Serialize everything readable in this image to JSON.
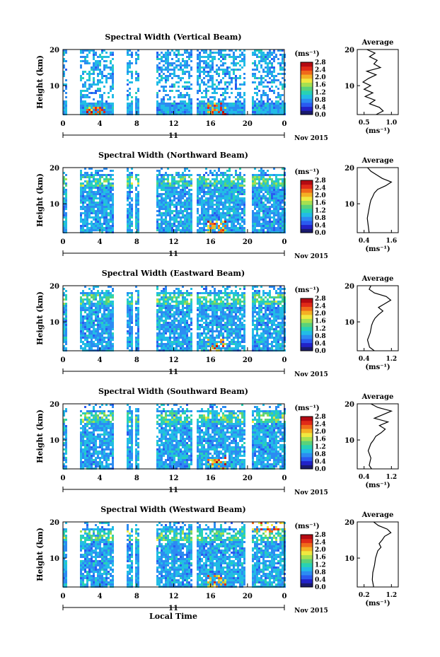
{
  "chart_data": [
    {
      "type": "heatmap",
      "title": "Spectral Width (Vertical Beam)",
      "ylabel": "Height (km)",
      "yticks": [
        "20",
        "10"
      ],
      "xticks": [
        "0",
        "4",
        "8",
        "12",
        "16",
        "20",
        "0"
      ],
      "date_labels": [
        "11",
        "Nov 2015"
      ],
      "colorbar": {
        "unit": "(ms⁻¹)",
        "ticks": [
          "0.0",
          "0.4",
          "0.8",
          "1.2",
          "1.6",
          "2.0",
          "2.4",
          "2.8"
        ]
      },
      "average_profile": {
        "title": "Average",
        "xlabel": "(ms⁻¹)",
        "xticks": [
          "0.5",
          "1.0"
        ],
        "yticks": [
          "20",
          "10"
        ],
        "points": [
          [
            0.72,
            2
          ],
          [
            0.85,
            3
          ],
          [
            0.78,
            4
          ],
          [
            0.6,
            5
          ],
          [
            0.7,
            6
          ],
          [
            0.52,
            7
          ],
          [
            0.66,
            8
          ],
          [
            0.5,
            9
          ],
          [
            0.62,
            10
          ],
          [
            0.48,
            11
          ],
          [
            0.58,
            12
          ],
          [
            0.72,
            13
          ],
          [
            0.55,
            14
          ],
          [
            0.8,
            15
          ],
          [
            0.68,
            16
          ],
          [
            0.74,
            17
          ],
          [
            0.6,
            18
          ],
          [
            0.7,
            19
          ],
          [
            0.55,
            20
          ]
        ]
      }
    },
    {
      "type": "heatmap",
      "title": "Spectral Width (Northward Beam)",
      "ylabel": "Height (km)",
      "yticks": [
        "20",
        "10"
      ],
      "xticks": [
        "0",
        "4",
        "8",
        "12",
        "16",
        "20",
        "0"
      ],
      "date_labels": [
        "11",
        "Nov 2015"
      ],
      "colorbar": {
        "unit": "(ms⁻¹)",
        "ticks": [
          "0.0",
          "0.4",
          "0.8",
          "1.2",
          "1.6",
          "2.0",
          "2.4",
          "2.8"
        ]
      },
      "average_profile": {
        "title": "Average",
        "xlabel": "(ms⁻¹)",
        "xticks": [
          "0.4",
          "1.6"
        ],
        "yticks": [
          "20",
          "10"
        ],
        "points": [
          [
            0.62,
            2
          ],
          [
            0.58,
            4
          ],
          [
            0.54,
            6
          ],
          [
            0.6,
            8
          ],
          [
            0.66,
            10
          ],
          [
            0.7,
            11
          ],
          [
            0.78,
            12
          ],
          [
            0.85,
            13
          ],
          [
            1.0,
            14
          ],
          [
            1.35,
            15
          ],
          [
            1.6,
            16
          ],
          [
            1.2,
            17
          ],
          [
            0.95,
            18
          ],
          [
            0.7,
            19
          ],
          [
            0.55,
            20
          ]
        ]
      }
    },
    {
      "type": "heatmap",
      "title": "Spectral Width (Eastward Beam)",
      "ylabel": "Height (km)",
      "yticks": [
        "20",
        "10"
      ],
      "xticks": [
        "0",
        "4",
        "8",
        "12",
        "16",
        "20",
        "0"
      ],
      "date_labels": [
        "11",
        "Nov 2015"
      ],
      "colorbar": {
        "unit": "(ms⁻¹)",
        "ticks": [
          "0.0",
          "0.4",
          "0.8",
          "1.2",
          "1.6",
          "2.0",
          "2.4",
          "2.8"
        ]
      },
      "average_profile": {
        "title": "Average",
        "xlabel": "(ms⁻¹)",
        "xticks": [
          "0.4",
          "1.2"
        ],
        "yticks": [
          "20",
          "10"
        ],
        "points": [
          [
            0.7,
            2
          ],
          [
            0.56,
            3
          ],
          [
            0.5,
            5
          ],
          [
            0.58,
            7
          ],
          [
            0.62,
            9
          ],
          [
            0.66,
            10
          ],
          [
            0.72,
            11
          ],
          [
            0.82,
            12
          ],
          [
            0.95,
            13
          ],
          [
            0.82,
            14
          ],
          [
            1.0,
            15
          ],
          [
            1.18,
            16
          ],
          [
            1.05,
            17
          ],
          [
            0.7,
            18
          ],
          [
            0.55,
            19
          ],
          [
            0.6,
            20
          ]
        ]
      }
    },
    {
      "type": "heatmap",
      "title": "Spectral Width (Southward Beam)",
      "ylabel": "Height (km)",
      "yticks": [
        "20",
        "10"
      ],
      "xticks": [
        "0",
        "4",
        "8",
        "12",
        "16",
        "20",
        "0"
      ],
      "date_labels": [
        "11",
        "Nov 2015"
      ],
      "colorbar": {
        "unit": "(ms⁻¹)",
        "ticks": [
          "0.0",
          "0.4",
          "0.8",
          "1.2",
          "1.6",
          "2.0",
          "2.4",
          "2.8"
        ]
      },
      "average_profile": {
        "title": "Average",
        "xlabel": "(ms⁻¹)",
        "xticks": [
          "0.4",
          "1.2"
        ],
        "yticks": [
          "20",
          "10"
        ],
        "points": [
          [
            0.62,
            2
          ],
          [
            0.55,
            3
          ],
          [
            0.6,
            5
          ],
          [
            0.52,
            7
          ],
          [
            0.6,
            9
          ],
          [
            0.68,
            10
          ],
          [
            0.74,
            11
          ],
          [
            0.9,
            12
          ],
          [
            1.02,
            13
          ],
          [
            0.85,
            14
          ],
          [
            1.1,
            15
          ],
          [
            0.7,
            16
          ],
          [
            0.95,
            17
          ],
          [
            1.2,
            18
          ],
          [
            0.8,
            19
          ],
          [
            0.6,
            20
          ]
        ]
      }
    },
    {
      "type": "heatmap",
      "title": "Spectral Width (Westward Beam)",
      "ylabel": "Height (km)",
      "yticks": [
        "20",
        "10"
      ],
      "xticks": [
        "0",
        "4",
        "8",
        "12",
        "16",
        "20",
        "0"
      ],
      "date_labels": [
        "11",
        "Nov 2015"
      ],
      "xlabel": "Local Time",
      "colorbar": {
        "unit": "(ms⁻¹)",
        "ticks": [
          "0.0",
          "0.4",
          "0.8",
          "1.2",
          "1.6",
          "2.0",
          "2.4",
          "2.8"
        ]
      },
      "average_profile": {
        "title": "Average",
        "xlabel": "(ms⁻¹)",
        "xticks": [
          "0.2",
          "1.2"
        ],
        "yticks": [
          "20",
          "10"
        ],
        "points": [
          [
            0.55,
            2
          ],
          [
            0.5,
            4
          ],
          [
            0.52,
            6
          ],
          [
            0.58,
            8
          ],
          [
            0.62,
            10
          ],
          [
            0.7,
            12
          ],
          [
            0.82,
            13
          ],
          [
            0.75,
            14
          ],
          [
            0.86,
            15
          ],
          [
            0.95,
            16
          ],
          [
            1.18,
            17
          ],
          [
            1.05,
            18
          ],
          [
            0.72,
            19
          ],
          [
            0.55,
            20
          ]
        ]
      }
    }
  ]
}
